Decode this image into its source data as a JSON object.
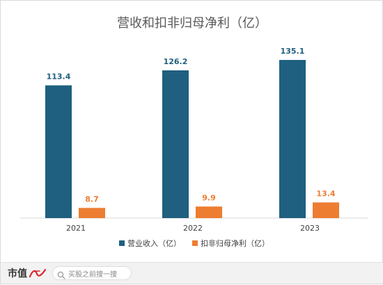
{
  "chart_data": {
    "type": "bar",
    "title": "营收和扣非归母净利（亿）",
    "categories": [
      "2021",
      "2022",
      "2023"
    ],
    "series": [
      {
        "name": "营业收入（亿）",
        "color": "#1f5f7f",
        "values": [
          113.4,
          126.2,
          135.1
        ],
        "labels": [
          "113.4",
          "126.2",
          "135.1"
        ]
      },
      {
        "name": "扣非归母净利（亿）",
        "color": "#ed7d31",
        "values": [
          8.7,
          9.9,
          13.4
        ],
        "labels": [
          "8.7",
          "9.9",
          "13.4"
        ]
      }
    ],
    "ylim": [
      0,
      150
    ],
    "grid": false,
    "legend": "bottom"
  },
  "footer": {
    "brand": "市值",
    "search_placeholder": "买股之前搜一搜"
  }
}
